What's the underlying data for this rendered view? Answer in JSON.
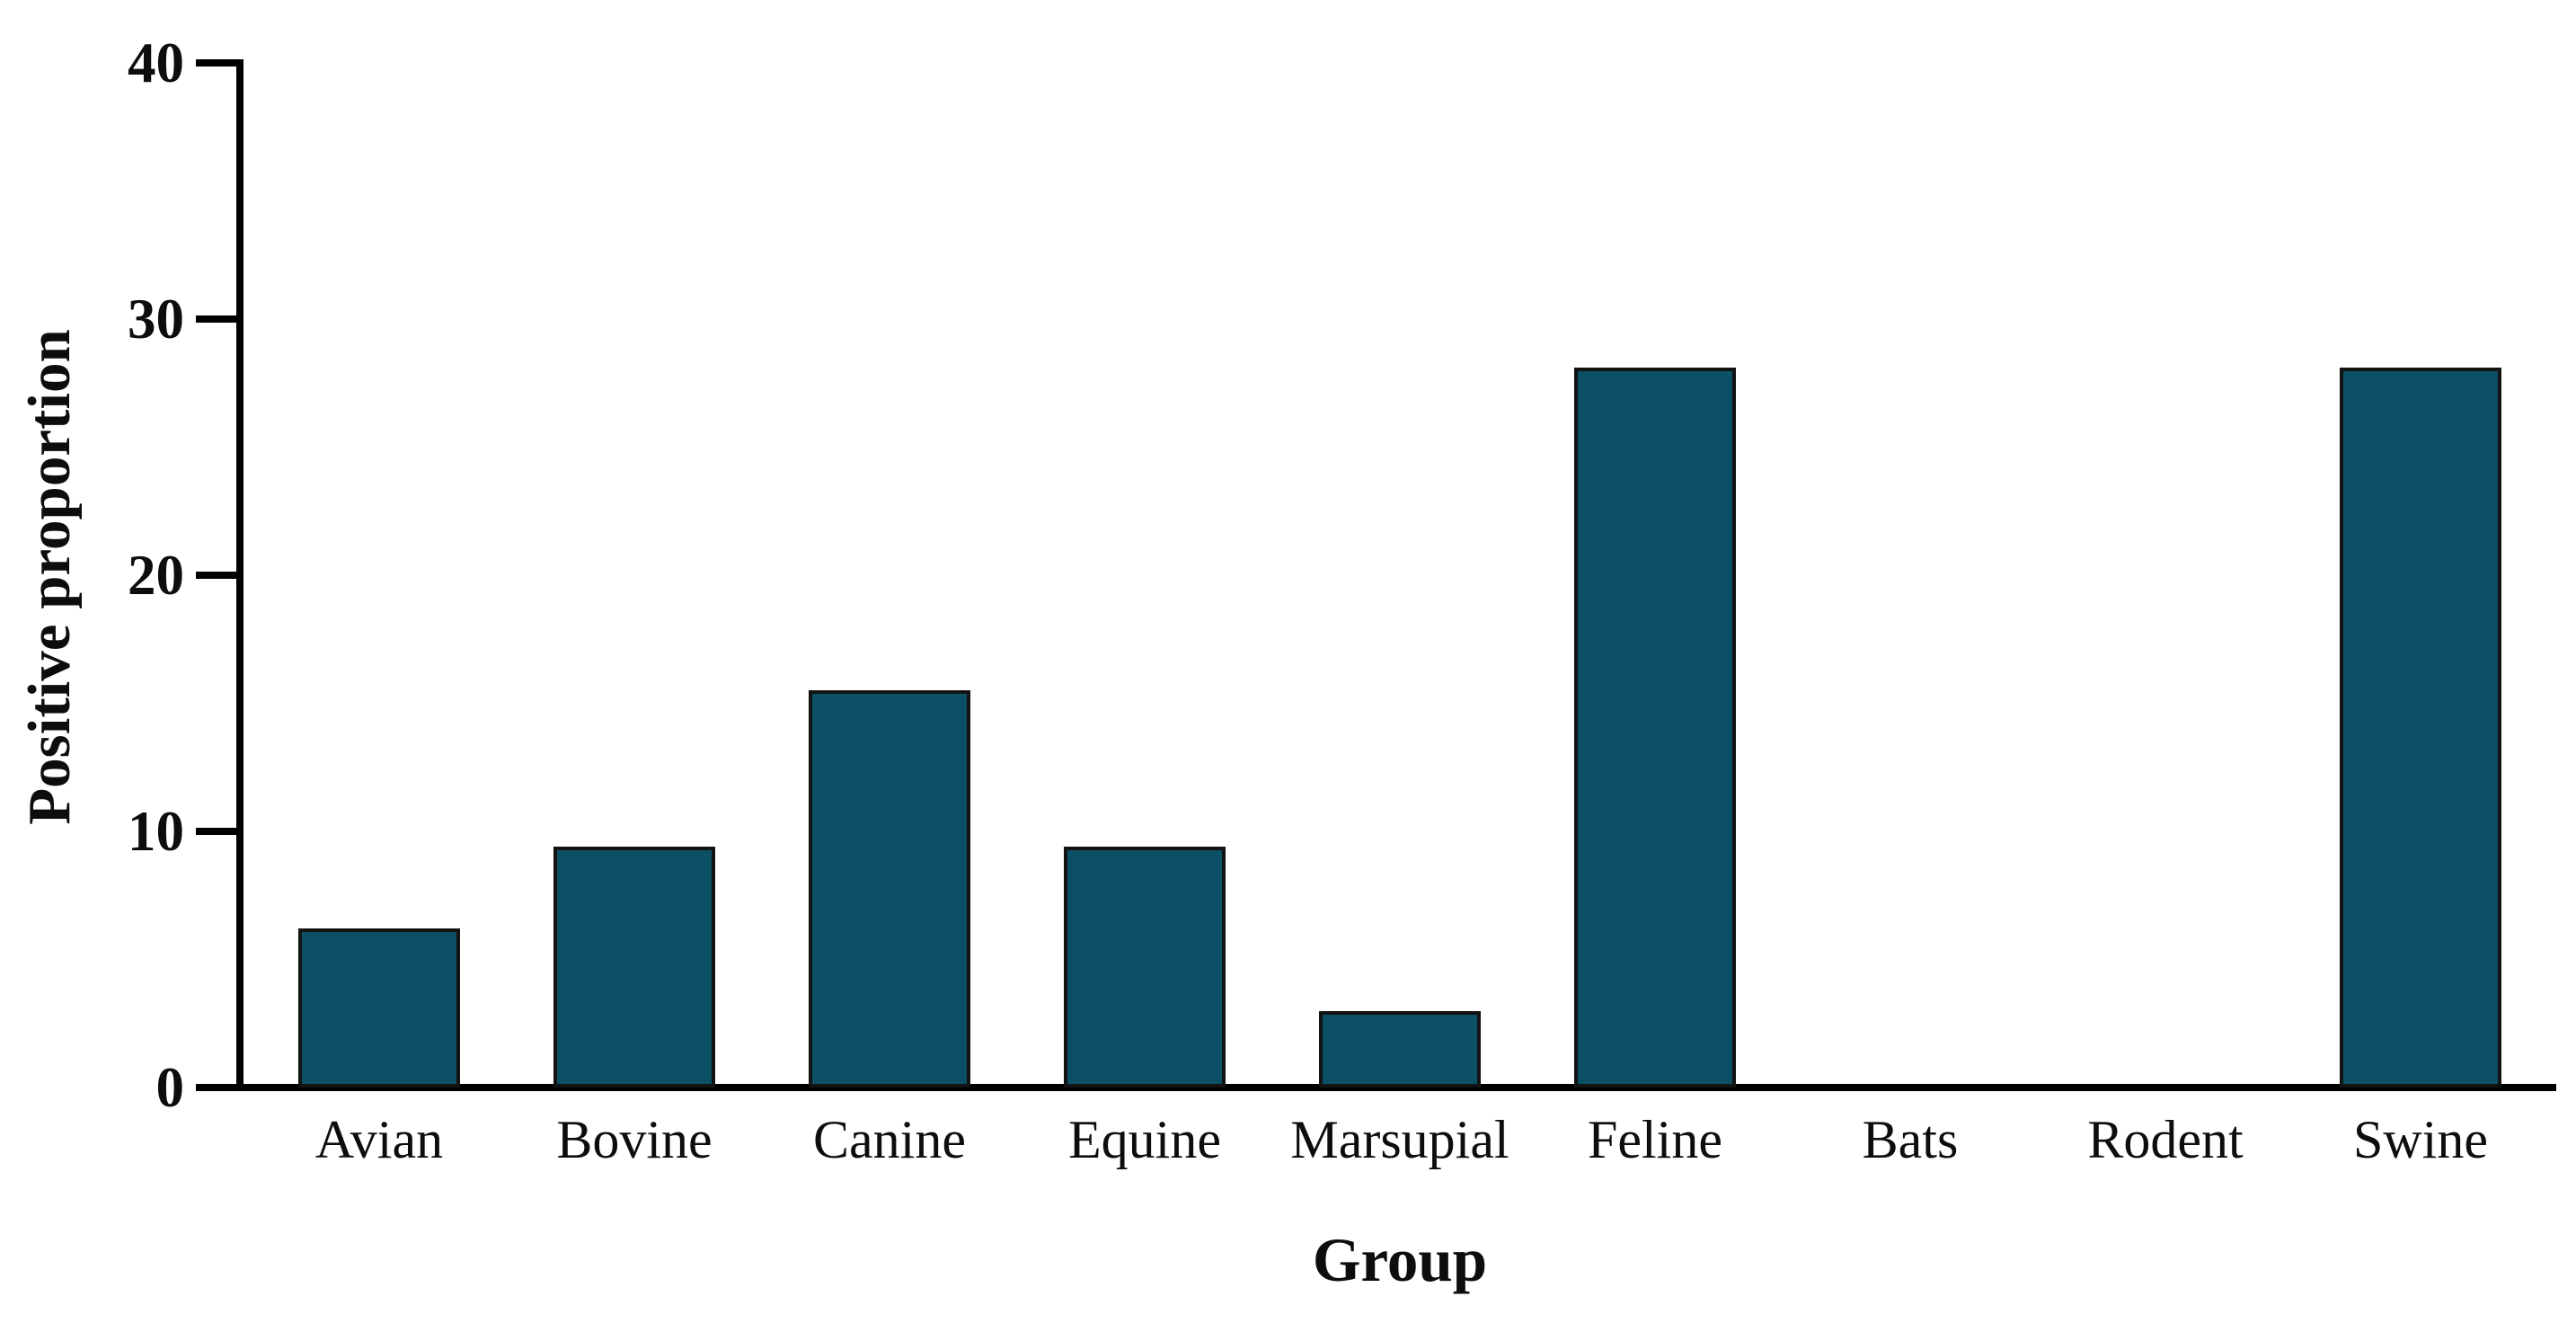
{
  "figure": {
    "background_color": "#ffffff"
  },
  "chart_data": {
    "type": "bar",
    "title": "",
    "xlabel": "Group",
    "ylabel": "Positive proportion",
    "categories": [
      "Avian",
      "Bovine",
      "Canine",
      "Equine",
      "Marsupial",
      "Feline",
      "Bats",
      "Rodent",
      "Swine"
    ],
    "values": [
      6.2,
      9.4,
      15.5,
      9.4,
      3,
      28.1,
      0,
      0,
      28.1
    ],
    "ylim": [
      0,
      40
    ],
    "yticks": [
      0,
      10,
      20,
      30,
      40
    ],
    "grid": false,
    "legend_position": "none",
    "bar_color": "#0b5065",
    "bar_edge_color": "#131313",
    "axis_color": "#000000",
    "text_color": "#0d0d0d"
  }
}
